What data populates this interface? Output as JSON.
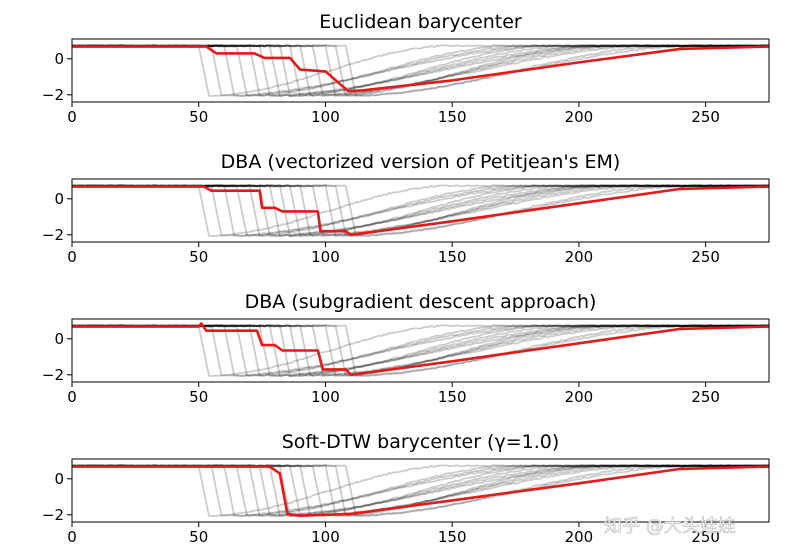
{
  "chart_data": [
    {
      "type": "line",
      "title": "Euclidean barycenter",
      "xlim": [
        0,
        275
      ],
      "ylim": [
        -2.4,
        1.1
      ],
      "x_ticks": [
        "0",
        "50",
        "100",
        "150",
        "200",
        "250"
      ],
      "y_ticks": [
        "0",
        "−2"
      ],
      "grid": false,
      "series": [
        {
          "role": "samples",
          "color": "#000000",
          "opacity": 0.2,
          "drop_starts": [
            50,
            55,
            60,
            65,
            70,
            74,
            78,
            82,
            86,
            90,
            95,
            100,
            104,
            108
          ]
        },
        {
          "role": "barycenter",
          "color": "#e31a1c",
          "points": [
            [
              0,
              0.68
            ],
            [
              53,
              0.68
            ],
            [
              57,
              0.3
            ],
            [
              72,
              0.3
            ],
            [
              76,
              0.05
            ],
            [
              86,
              0.05
            ],
            [
              90,
              -0.6
            ],
            [
              100,
              -0.7
            ],
            [
              109,
              -1.8
            ],
            [
              115,
              -1.75
            ],
            [
              150,
              -1.2
            ],
            [
              200,
              -0.2
            ],
            [
              240,
              0.55
            ],
            [
              275,
              0.68
            ]
          ]
        }
      ]
    },
    {
      "type": "line",
      "title": "DBA (vectorized version of Petitjean's EM)",
      "xlim": [
        0,
        275
      ],
      "ylim": [
        -2.4,
        1.1
      ],
      "x_ticks": [
        "0",
        "50",
        "100",
        "150",
        "200",
        "250"
      ],
      "y_ticks": [
        "0",
        "−2"
      ],
      "grid": false,
      "series": [
        {
          "role": "samples",
          "color": "#000000",
          "opacity": 0.2,
          "drop_starts": [
            50,
            55,
            60,
            65,
            70,
            74,
            78,
            82,
            86,
            90,
            95,
            100,
            104,
            108
          ]
        },
        {
          "role": "barycenter",
          "color": "#e31a1c",
          "points": [
            [
              0,
              0.68
            ],
            [
              52,
              0.68
            ],
            [
              55,
              0.45
            ],
            [
              74,
              0.45
            ],
            [
              75,
              -0.5
            ],
            [
              80,
              -0.5
            ],
            [
              83,
              -0.7
            ],
            [
              97,
              -0.7
            ],
            [
              98,
              -1.8
            ],
            [
              108,
              -1.8
            ],
            [
              110,
              -2.0
            ],
            [
              150,
              -1.25
            ],
            [
              200,
              -0.25
            ],
            [
              240,
              0.55
            ],
            [
              275,
              0.68
            ]
          ]
        }
      ]
    },
    {
      "type": "line",
      "title": "DBA (subgradient descent approach)",
      "xlim": [
        0,
        275
      ],
      "ylim": [
        -2.4,
        1.1
      ],
      "x_ticks": [
        "0",
        "50",
        "100",
        "150",
        "200",
        "250"
      ],
      "y_ticks": [
        "0",
        "−2"
      ],
      "grid": false,
      "series": [
        {
          "role": "samples",
          "color": "#000000",
          "opacity": 0.2,
          "drop_starts": [
            50,
            55,
            60,
            65,
            70,
            74,
            78,
            82,
            86,
            90,
            95,
            100,
            104,
            108
          ]
        },
        {
          "role": "barycenter",
          "color": "#e31a1c",
          "points": [
            [
              0,
              0.68
            ],
            [
              50,
              0.68
            ],
            [
              51,
              0.85
            ],
            [
              53,
              0.45
            ],
            [
              73,
              0.45
            ],
            [
              75,
              -0.35
            ],
            [
              80,
              -0.35
            ],
            [
              83,
              -0.65
            ],
            [
              97,
              -0.65
            ],
            [
              99,
              -1.7
            ],
            [
              108,
              -1.7
            ],
            [
              110,
              -2.0
            ],
            [
              150,
              -1.25
            ],
            [
              200,
              -0.25
            ],
            [
              240,
              0.55
            ],
            [
              275,
              0.68
            ]
          ]
        }
      ]
    },
    {
      "type": "line",
      "title": "Soft-DTW barycenter (γ=1.0)",
      "xlim": [
        0,
        275
      ],
      "ylim": [
        -2.4,
        1.1
      ],
      "x_ticks": [
        "0",
        "50",
        "100",
        "150",
        "200",
        "250"
      ],
      "y_ticks": [
        "0",
        "−2"
      ],
      "grid": false,
      "series": [
        {
          "role": "samples",
          "color": "#000000",
          "opacity": 0.2,
          "drop_starts": [
            50,
            55,
            60,
            65,
            70,
            74,
            78,
            82,
            86,
            90,
            95,
            100,
            104,
            108
          ]
        },
        {
          "role": "barycenter",
          "color": "#e31a1c",
          "points": [
            [
              0,
              0.68
            ],
            [
              78,
              0.68
            ],
            [
              82,
              0.3
            ],
            [
              85,
              -1.95
            ],
            [
              90,
              -2.05
            ],
            [
              110,
              -1.95
            ],
            [
              150,
              -1.2
            ],
            [
              200,
              -0.25
            ],
            [
              240,
              0.55
            ],
            [
              275,
              0.68
            ]
          ]
        }
      ]
    }
  ],
  "watermark": "知乎 @大头娃娃"
}
